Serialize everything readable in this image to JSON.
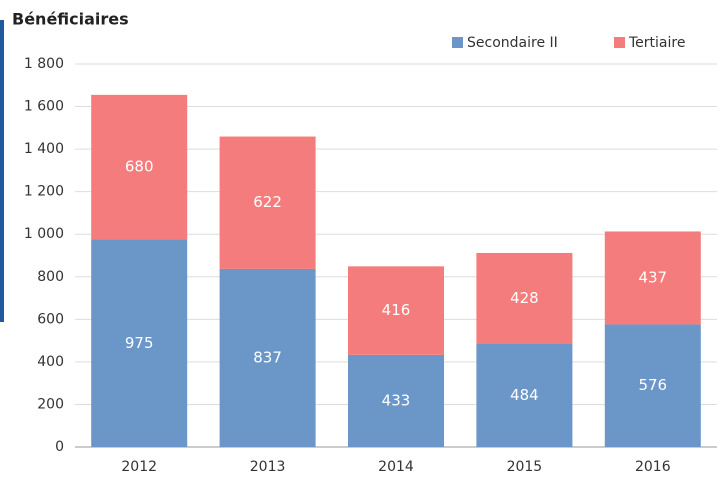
{
  "chart_data": {
    "type": "stacked-bar",
    "title": "Bénéficiaires",
    "categories": [
      "2012",
      "2013",
      "2014",
      "2015",
      "2016"
    ],
    "series": [
      {
        "name": "Secondaire II",
        "color": "#6a96c8",
        "values": [
          975,
          837,
          433,
          484,
          576
        ]
      },
      {
        "name": "Tertiaire",
        "color": "#f47c7c",
        "values": [
          680,
          622,
          416,
          428,
          437
        ]
      }
    ],
    "ylim": [
      0,
      1800
    ],
    "yticks": [
      0,
      200,
      400,
      600,
      800,
      {
        "value": 1000,
        "label": "1 000"
      },
      {
        "value": 1200,
        "label": "1 200"
      },
      {
        "value": 1400,
        "label": "1 400"
      },
      {
        "value": 1600,
        "label": "1 600"
      },
      {
        "value": 1800,
        "label": "1 800"
      }
    ],
    "grid": true
  }
}
